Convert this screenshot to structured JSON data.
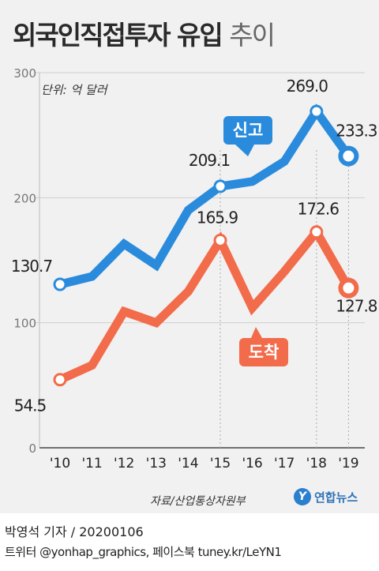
{
  "title_bold": "외국인직접투자 유입",
  "title_light": "추이",
  "unit_label": "단위: 억 달러",
  "source": "자료/산업통상자원부",
  "agency": "연합뉴스",
  "credit": "박영석 기자 / 20200106",
  "social": "트위터 @yonhap_graphics, 페이스북 tuney.kr/LeYN1",
  "chart_data": {
    "type": "line",
    "categories": [
      "'10",
      "'11",
      "'12",
      "'13",
      "'14",
      "'15",
      "'16",
      "'17",
      "'18",
      "'19"
    ],
    "ylim": [
      0,
      300
    ],
    "yticks": [
      "0",
      "100",
      "200",
      "300"
    ],
    "series": [
      {
        "name": "신고",
        "color": "#2a8bdc",
        "values": [
          130.7,
          137,
          163,
          146,
          190,
          209.1,
          213,
          229,
          269.0,
          233.3
        ],
        "labels": [
          "130.7",
          "",
          "",
          "",
          "",
          "209.1",
          "",
          "",
          "269.0",
          "233.3"
        ]
      },
      {
        "name": "도착",
        "color": "#f26b4a",
        "values": [
          54.5,
          66,
          109,
          100,
          125,
          165.9,
          112,
          141,
          172.6,
          127.8
        ],
        "labels": [
          "54.5",
          "",
          "",
          "",
          "",
          "165.9",
          "",
          "",
          "172.6",
          "127.8"
        ]
      }
    ]
  }
}
